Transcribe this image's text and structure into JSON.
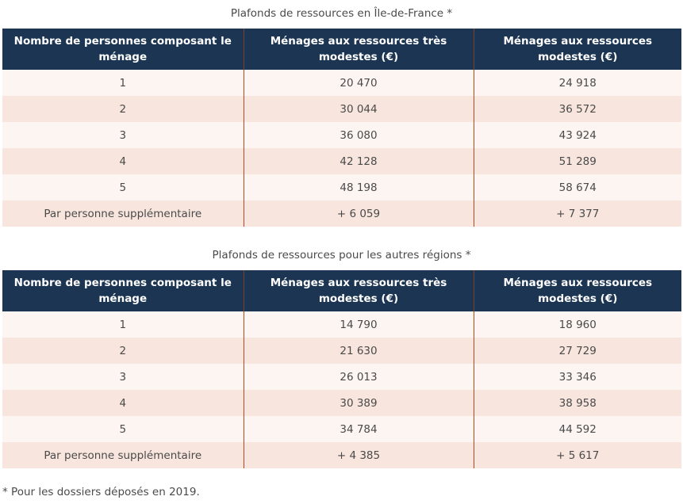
{
  "table1": {
    "caption": "Plafonds de ressources en Île-de-France *",
    "headers": [
      "Nombre de personnes composant le ménage",
      "Ménages aux ressources très modestes (€)",
      "Ménages aux ressources modestes (€)"
    ],
    "rows": [
      [
        "1",
        "20 470",
        "24 918"
      ],
      [
        "2",
        "30 044",
        "36 572"
      ],
      [
        "3",
        "36 080",
        "43 924"
      ],
      [
        "4",
        "42 128",
        "51 289"
      ],
      [
        "5",
        "48 198",
        "58 674"
      ],
      [
        "Par personne supplémentaire",
        "+ 6 059",
        "+ 7 377"
      ]
    ]
  },
  "table2": {
    "caption": "Plafonds de ressources pour les autres régions *",
    "headers": [
      "Nombre de personnes composant le ménage",
      "Ménages aux ressources très modestes (€)",
      "Ménages aux ressources modestes (€)"
    ],
    "rows": [
      [
        "1",
        "14 790",
        "18 960"
      ],
      [
        "2",
        "21 630",
        "27 729"
      ],
      [
        "3",
        "26 013",
        "33 346"
      ],
      [
        "4",
        "30 389",
        "38 958"
      ],
      [
        "5",
        "34 784",
        "44 592"
      ],
      [
        "Par personne supplémentaire",
        "+ 4 385",
        "+ 5 617"
      ]
    ]
  },
  "footnote": "* Pour les dossiers déposés en 2019.",
  "colors": {
    "header_bg": "#1b3553",
    "row_light": "#fdf5f2",
    "row_dark": "#f8e6de",
    "divider": "#b54a1e"
  }
}
